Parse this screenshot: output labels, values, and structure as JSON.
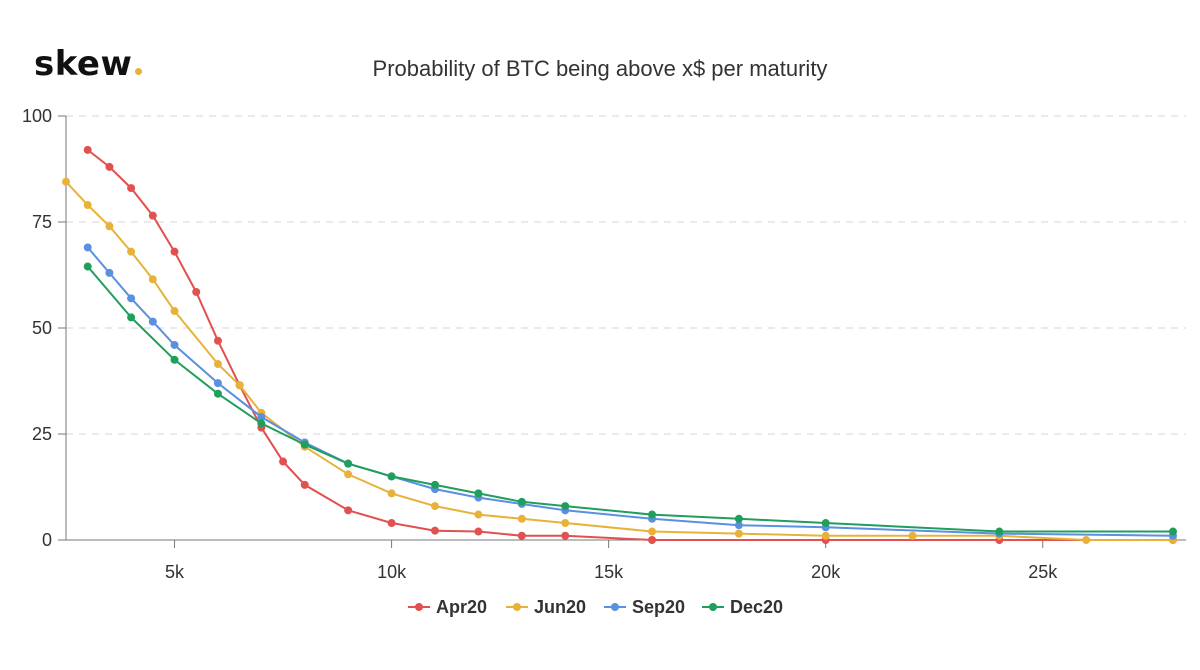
{
  "logo": {
    "text": "skew",
    "dot_color": "#e8b23a"
  },
  "chart_data": {
    "type": "line",
    "title": "Probability of BTC being above x$ per maturity",
    "xlabel": "",
    "ylabel": "",
    "xlim": [
      2500,
      28300
    ],
    "ylim": [
      0,
      100
    ],
    "xticks": [
      5000,
      10000,
      15000,
      20000,
      25000
    ],
    "xtick_labels": [
      "5k",
      "10k",
      "15k",
      "20k",
      "25k"
    ],
    "yticks": [
      0,
      25,
      50,
      75,
      100
    ],
    "ytick_labels": [
      "0",
      "25",
      "50",
      "75",
      "100"
    ],
    "grid": "horizontal-dashed",
    "legend": "bottom-center",
    "series": [
      {
        "name": "Apr20",
        "color": "#e0514f",
        "points": [
          [
            3000,
            92
          ],
          [
            3500,
            88
          ],
          [
            4000,
            83
          ],
          [
            4500,
            76.5
          ],
          [
            5000,
            68
          ],
          [
            5500,
            58.5
          ],
          [
            6000,
            47
          ],
          [
            6500,
            36.5
          ],
          [
            7000,
            26.5
          ],
          [
            7500,
            18.5
          ],
          [
            8000,
            13
          ],
          [
            9000,
            7
          ],
          [
            10000,
            4
          ],
          [
            11000,
            2.2
          ],
          [
            12000,
            2
          ],
          [
            13000,
            1
          ],
          [
            14000,
            1
          ],
          [
            16000,
            0
          ],
          [
            20000,
            0
          ],
          [
            24000,
            0
          ],
          [
            28000,
            0
          ]
        ]
      },
      {
        "name": "Jun20",
        "color": "#e8b23a",
        "points": [
          [
            2500,
            84.5
          ],
          [
            3000,
            79
          ],
          [
            3500,
            74
          ],
          [
            4000,
            68
          ],
          [
            4500,
            61.5
          ],
          [
            5000,
            54
          ],
          [
            6000,
            41.5
          ],
          [
            6500,
            36.5
          ],
          [
            7000,
            30
          ],
          [
            8000,
            22
          ],
          [
            9000,
            15.5
          ],
          [
            10000,
            11
          ],
          [
            11000,
            8
          ],
          [
            12000,
            6
          ],
          [
            13000,
            5
          ],
          [
            14000,
            4
          ],
          [
            16000,
            2
          ],
          [
            18000,
            1.5
          ],
          [
            20000,
            1
          ],
          [
            22000,
            1
          ],
          [
            24000,
            1
          ],
          [
            26000,
            0
          ],
          [
            28000,
            0
          ]
        ]
      },
      {
        "name": "Sep20",
        "color": "#5b8fe0",
        "points": [
          [
            3000,
            69
          ],
          [
            3500,
            63
          ],
          [
            4000,
            57
          ],
          [
            4500,
            51.5
          ],
          [
            5000,
            46
          ],
          [
            6000,
            37
          ],
          [
            7000,
            29
          ],
          [
            8000,
            23
          ],
          [
            9000,
            18
          ],
          [
            10000,
            15
          ],
          [
            11000,
            12
          ],
          [
            12000,
            10
          ],
          [
            13000,
            8.5
          ],
          [
            14000,
            7
          ],
          [
            16000,
            5
          ],
          [
            18000,
            3.5
          ],
          [
            20000,
            3
          ],
          [
            24000,
            1.5
          ],
          [
            28000,
            1
          ]
        ]
      },
      {
        "name": "Dec20",
        "color": "#1f9e5c",
        "points": [
          [
            3000,
            64.5
          ],
          [
            4000,
            52.5
          ],
          [
            5000,
            42.5
          ],
          [
            6000,
            34.5
          ],
          [
            7000,
            27.5
          ],
          [
            8000,
            22.5
          ],
          [
            9000,
            18
          ],
          [
            10000,
            15
          ],
          [
            11000,
            13
          ],
          [
            12000,
            11
          ],
          [
            13000,
            9
          ],
          [
            14000,
            8
          ],
          [
            16000,
            6
          ],
          [
            18000,
            5
          ],
          [
            20000,
            4
          ],
          [
            24000,
            2
          ],
          [
            28000,
            2
          ]
        ]
      }
    ]
  }
}
